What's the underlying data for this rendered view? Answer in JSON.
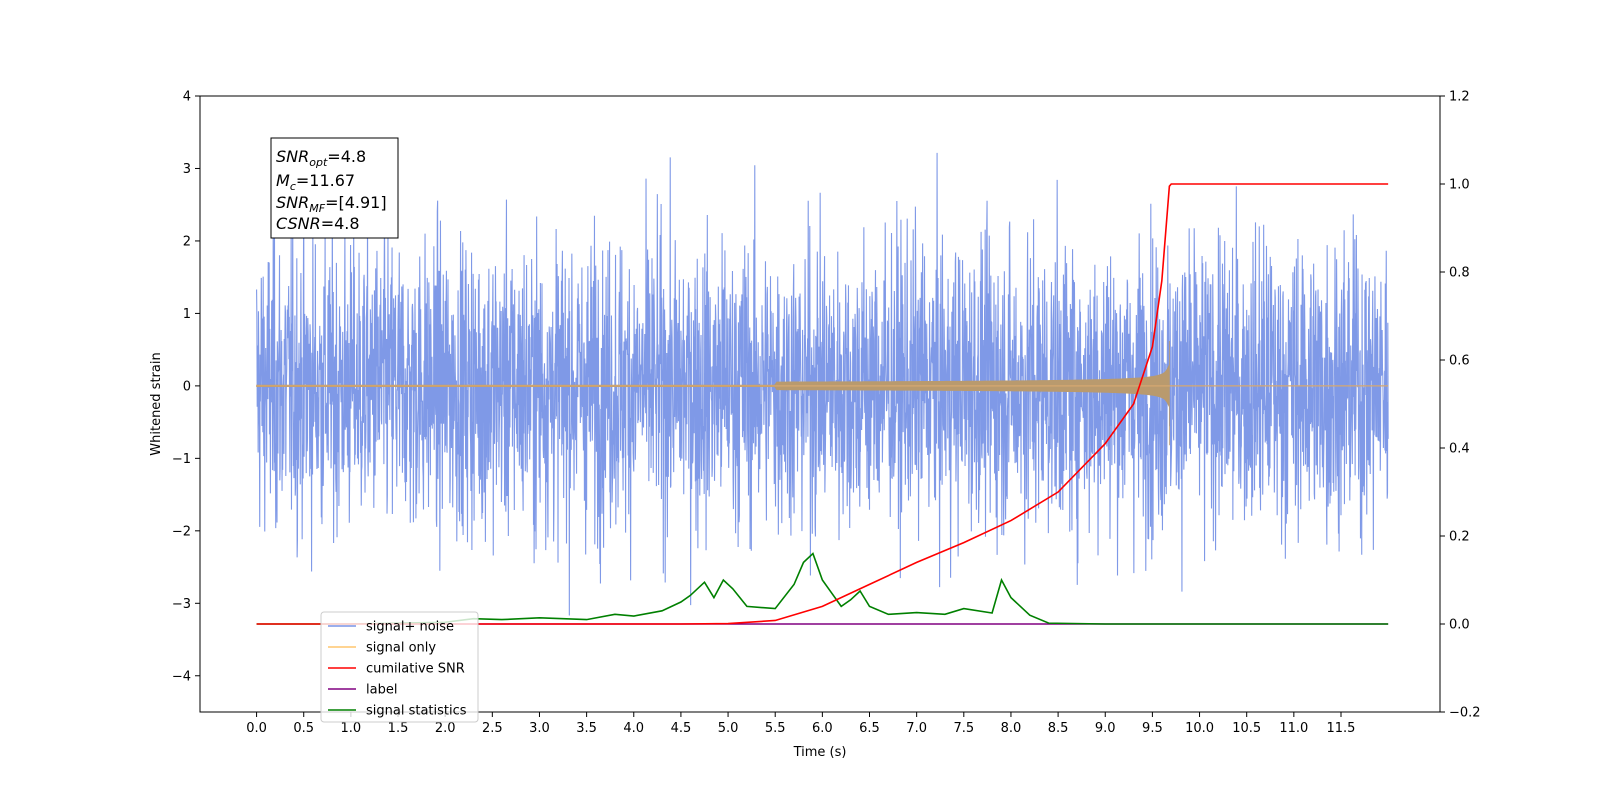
{
  "chart_data": {
    "type": "line",
    "title": "",
    "xlabel": "Time (s)",
    "ylabel": "Whitened strain",
    "xlim": [
      -0.6,
      12.55
    ],
    "ylim": [
      -4.5,
      4
    ],
    "y2lim": [
      -0.2,
      1.2
    ],
    "x_ticks": [
      "0.0",
      "0.5",
      "1.0",
      "1.5",
      "2.0",
      "2.5",
      "3.0",
      "3.5",
      "4.0",
      "4.5",
      "5.0",
      "5.5",
      "6.0",
      "6.5",
      "7.0",
      "7.5",
      "8.0",
      "8.5",
      "9.0",
      "9.5",
      "10.0",
      "10.5",
      "11.0",
      "11.5"
    ],
    "y_ticks": [
      "−4",
      "−3",
      "−2",
      "−1",
      "0",
      "1",
      "2",
      "3",
      "4"
    ],
    "y2_ticks": [
      "−0.2",
      "0.0",
      "0.2",
      "0.4",
      "0.6",
      "0.8",
      "1.0",
      "1.2"
    ],
    "grid": false,
    "legend_position": "lower-left",
    "annotation": {
      "snr_opt": {
        "base": "SNR",
        "sub": "opt",
        "value": "=4.8"
      },
      "mc": {
        "base": "M",
        "sub": "c",
        "value": "=11.67"
      },
      "snr_mf": {
        "base": "SNR",
        "sub": "MF",
        "value": "=[4.91]"
      },
      "csnr": {
        "base": "CSNR",
        "value": "=4.8"
      }
    },
    "series": [
      {
        "name": "signal+ noise",
        "color": "#7893e6",
        "axis": "left",
        "kind": "noise",
        "x_range": [
          0,
          12
        ],
        "amplitude_std": 1.0
      },
      {
        "name": "signal only",
        "color": "#ffc66e",
        "axis": "left",
        "kind": "chirp",
        "x_range": [
          0,
          12
        ],
        "merger_time": 9.68,
        "peak": [
          0.62,
          -0.82
        ]
      },
      {
        "name": "cumilative SNR",
        "color": "#ff0000",
        "axis": "right",
        "x": [
          0,
          4.5,
          5.0,
          5.5,
          6.0,
          6.5,
          7.0,
          7.5,
          8.0,
          8.5,
          9.0,
          9.3,
          9.5,
          9.6,
          9.68,
          9.7,
          12.0
        ],
        "y": [
          0,
          0,
          0.001,
          0.008,
          0.04,
          0.09,
          0.14,
          0.185,
          0.235,
          0.3,
          0.41,
          0.5,
          0.63,
          0.78,
          0.995,
          1.0,
          1.0
        ]
      },
      {
        "name": "label",
        "color": "#800080",
        "axis": "right",
        "x": [
          1.2,
          12.0
        ],
        "y": [
          0,
          0
        ]
      },
      {
        "name": "signal statistics",
        "color": "#008000",
        "axis": "right",
        "x": [
          0,
          1,
          2,
          2.3,
          2.6,
          3.0,
          3.5,
          3.8,
          4.0,
          4.3,
          4.5,
          4.6,
          4.75,
          4.85,
          4.95,
          5.05,
          5.2,
          5.5,
          5.7,
          5.8,
          5.9,
          6.0,
          6.1,
          6.2,
          6.3,
          6.4,
          6.5,
          6.7,
          7.0,
          7.3,
          7.5,
          7.8,
          7.9,
          8.0,
          8.2,
          8.4,
          9.0,
          10.0,
          11.0,
          12.0
        ],
        "y": [
          0,
          0,
          0.004,
          0.012,
          0.01,
          0.014,
          0.01,
          0.022,
          0.018,
          0.03,
          0.05,
          0.065,
          0.095,
          0.06,
          0.1,
          0.08,
          0.04,
          0.035,
          0.09,
          0.14,
          0.16,
          0.1,
          0.07,
          0.04,
          0.055,
          0.075,
          0.04,
          0.022,
          0.026,
          0.022,
          0.035,
          0.025,
          0.1,
          0.06,
          0.02,
          0.002,
          0,
          0,
          0,
          0
        ]
      }
    ]
  }
}
